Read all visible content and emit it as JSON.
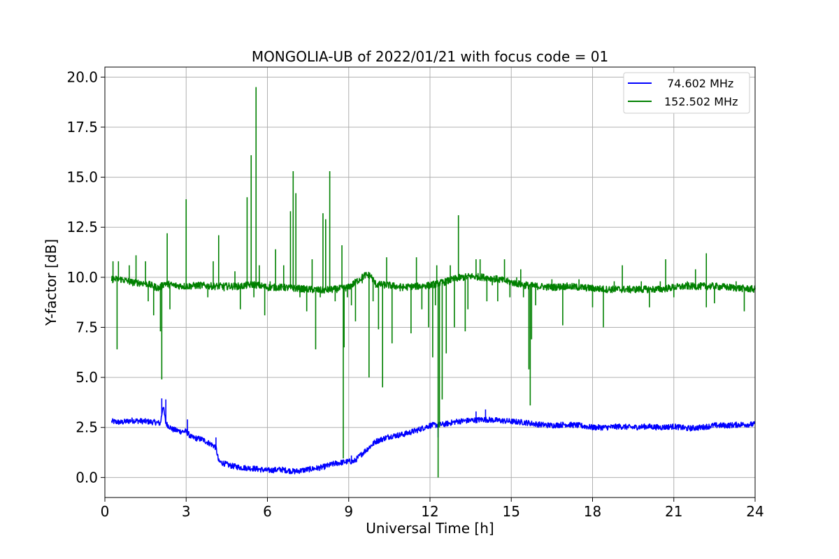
{
  "chart_data": {
    "type": "line",
    "title": "MONGOLIA-UB of 2022/01/21 with focus code = 01",
    "xlabel": "Universal Time [h]",
    "ylabel": "Y-factor [dB]",
    "xlim": [
      0,
      24
    ],
    "ylim": [
      -1.0,
      20.5
    ],
    "xticks": [
      0,
      3,
      6,
      9,
      12,
      15,
      18,
      21,
      24
    ],
    "xtick_labels": [
      "0",
      "3",
      "6",
      "9",
      "12",
      "15",
      "18",
      "21",
      "24"
    ],
    "yticks": [
      0.0,
      2.5,
      5.0,
      7.5,
      10.0,
      12.5,
      15.0,
      17.5,
      20.0
    ],
    "ytick_labels": [
      "0.0",
      "2.5",
      "5.0",
      "7.5",
      "10.0",
      "12.5",
      "15.0",
      "17.5",
      "20.0"
    ],
    "grid": true,
    "legend_position": "top-right",
    "series": [
      {
        "name": "74.602 MHz",
        "color": "#0000ff",
        "baseline": [
          [
            0.25,
            2.8
          ],
          [
            0.6,
            2.75
          ],
          [
            1.0,
            2.85
          ],
          [
            1.5,
            2.8
          ],
          [
            1.9,
            2.75
          ],
          [
            2.05,
            2.7
          ],
          [
            2.15,
            3.6
          ],
          [
            2.25,
            2.7
          ],
          [
            2.5,
            2.4
          ],
          [
            2.8,
            2.3
          ],
          [
            3.0,
            2.3
          ],
          [
            3.2,
            2.0
          ],
          [
            3.6,
            1.9
          ],
          [
            4.0,
            1.6
          ],
          [
            4.1,
            1.5
          ],
          [
            4.2,
            0.8
          ],
          [
            4.6,
            0.6
          ],
          [
            5.0,
            0.5
          ],
          [
            5.5,
            0.45
          ],
          [
            6.0,
            0.35
          ],
          [
            6.5,
            0.4
          ],
          [
            7.0,
            0.3
          ],
          [
            7.5,
            0.4
          ],
          [
            8.0,
            0.5
          ],
          [
            8.5,
            0.7
          ],
          [
            9.0,
            0.8
          ],
          [
            9.2,
            0.8
          ],
          [
            9.5,
            1.2
          ],
          [
            10.0,
            1.8
          ],
          [
            10.5,
            2.05
          ],
          [
            11.0,
            2.15
          ],
          [
            11.5,
            2.35
          ],
          [
            12.0,
            2.6
          ],
          [
            12.5,
            2.65
          ],
          [
            13.0,
            2.8
          ],
          [
            13.5,
            2.85
          ],
          [
            14.0,
            2.9
          ],
          [
            14.5,
            2.85
          ],
          [
            15.0,
            2.8
          ],
          [
            15.5,
            2.75
          ],
          [
            16.0,
            2.65
          ],
          [
            16.5,
            2.6
          ],
          [
            17.0,
            2.65
          ],
          [
            17.5,
            2.6
          ],
          [
            18.0,
            2.5
          ],
          [
            18.5,
            2.5
          ],
          [
            19.0,
            2.55
          ],
          [
            19.5,
            2.5
          ],
          [
            20.0,
            2.55
          ],
          [
            20.5,
            2.5
          ],
          [
            21.0,
            2.55
          ],
          [
            21.5,
            2.45
          ],
          [
            22.0,
            2.5
          ],
          [
            22.5,
            2.6
          ],
          [
            23.0,
            2.6
          ],
          [
            23.5,
            2.65
          ],
          [
            24.0,
            2.65
          ]
        ],
        "spikes": [
          [
            2.1,
            3.95
          ],
          [
            2.25,
            3.9
          ],
          [
            3.05,
            2.9
          ],
          [
            4.1,
            2.0
          ],
          [
            9.1,
            1.1
          ],
          [
            14.05,
            3.4
          ],
          [
            13.7,
            3.3
          ],
          [
            12.3,
            2.0
          ]
        ]
      },
      {
        "name": "152.502 MHz",
        "color": "#008000",
        "baseline": [
          [
            0.25,
            9.9
          ],
          [
            0.6,
            9.9
          ],
          [
            1.0,
            9.75
          ],
          [
            1.5,
            9.7
          ],
          [
            1.8,
            9.55
          ],
          [
            2.0,
            9.45
          ],
          [
            2.2,
            9.7
          ],
          [
            2.5,
            9.6
          ],
          [
            3.0,
            9.55
          ],
          [
            3.5,
            9.6
          ],
          [
            4.0,
            9.55
          ],
          [
            4.5,
            9.55
          ],
          [
            5.0,
            9.55
          ],
          [
            5.5,
            9.65
          ],
          [
            6.0,
            9.5
          ],
          [
            6.5,
            9.5
          ],
          [
            7.0,
            9.45
          ],
          [
            7.5,
            9.4
          ],
          [
            8.0,
            9.35
          ],
          [
            8.5,
            9.4
          ],
          [
            9.0,
            9.5
          ],
          [
            9.3,
            9.8
          ],
          [
            9.6,
            10.1
          ],
          [
            9.8,
            10.1
          ],
          [
            10.0,
            9.65
          ],
          [
            10.5,
            9.6
          ],
          [
            11.0,
            9.5
          ],
          [
            11.5,
            9.55
          ],
          [
            12.0,
            9.6
          ],
          [
            12.5,
            9.75
          ],
          [
            13.0,
            9.95
          ],
          [
            13.5,
            10.05
          ],
          [
            14.0,
            10.0
          ],
          [
            14.5,
            9.9
          ],
          [
            15.0,
            9.75
          ],
          [
            15.5,
            9.6
          ],
          [
            16.0,
            9.55
          ],
          [
            16.5,
            9.5
          ],
          [
            17.0,
            9.55
          ],
          [
            17.5,
            9.5
          ],
          [
            18.0,
            9.45
          ],
          [
            18.5,
            9.4
          ],
          [
            19.0,
            9.4
          ],
          [
            19.5,
            9.4
          ],
          [
            20.0,
            9.4
          ],
          [
            20.5,
            9.4
          ],
          [
            21.0,
            9.5
          ],
          [
            21.5,
            9.55
          ],
          [
            22.0,
            9.55
          ],
          [
            22.5,
            9.55
          ],
          [
            23.0,
            9.5
          ],
          [
            23.5,
            9.45
          ],
          [
            24.0,
            9.4
          ]
        ],
        "spikes": [
          [
            0.3,
            10.8
          ],
          [
            0.45,
            6.4
          ],
          [
            0.5,
            10.8
          ],
          [
            0.9,
            10.6
          ],
          [
            1.15,
            11.1
          ],
          [
            1.5,
            10.8
          ],
          [
            1.6,
            8.8
          ],
          [
            1.8,
            8.1
          ],
          [
            2.05,
            7.3
          ],
          [
            2.1,
            4.9
          ],
          [
            2.3,
            12.2
          ],
          [
            2.4,
            8.4
          ],
          [
            3.0,
            13.9
          ],
          [
            3.8,
            9.0
          ],
          [
            4.0,
            10.8
          ],
          [
            4.2,
            12.1
          ],
          [
            4.4,
            9.3
          ],
          [
            4.8,
            10.3
          ],
          [
            5.0,
            8.4
          ],
          [
            5.25,
            14.0
          ],
          [
            5.4,
            16.1
          ],
          [
            5.5,
            9.0
          ],
          [
            5.58,
            19.5
          ],
          [
            5.7,
            10.6
          ],
          [
            5.9,
            8.1
          ],
          [
            6.1,
            9.8
          ],
          [
            6.3,
            11.4
          ],
          [
            6.5,
            9.6
          ],
          [
            6.6,
            10.6
          ],
          [
            6.7,
            9.5
          ],
          [
            6.85,
            13.3
          ],
          [
            6.95,
            15.3
          ],
          [
            7.05,
            14.2
          ],
          [
            7.2,
            9.0
          ],
          [
            7.45,
            8.3
          ],
          [
            7.65,
            10.9
          ],
          [
            7.78,
            6.4
          ],
          [
            7.95,
            9.0
          ],
          [
            8.05,
            13.2
          ],
          [
            8.15,
            12.9
          ],
          [
            8.3,
            15.3
          ],
          [
            8.5,
            8.8
          ],
          [
            8.75,
            11.6
          ],
          [
            8.8,
            0.95
          ],
          [
            8.83,
            6.5
          ],
          [
            8.95,
            9.0
          ],
          [
            9.1,
            8.6
          ],
          [
            9.25,
            7.8
          ],
          [
            9.5,
            9.7
          ],
          [
            9.75,
            5.0
          ],
          [
            9.9,
            8.8
          ],
          [
            10.1,
            7.4
          ],
          [
            10.25,
            4.5
          ],
          [
            10.4,
            11.0
          ],
          [
            10.6,
            6.7
          ],
          [
            10.9,
            9.3
          ],
          [
            11.3,
            7.2
          ],
          [
            11.5,
            11.0
          ],
          [
            11.7,
            8.4
          ],
          [
            11.95,
            7.5
          ],
          [
            12.1,
            6.0
          ],
          [
            12.2,
            8.6
          ],
          [
            12.25,
            10.6
          ],
          [
            12.3,
            0.0
          ],
          [
            12.35,
            2.5
          ],
          [
            12.45,
            3.9
          ],
          [
            12.6,
            6.2
          ],
          [
            12.75,
            10.6
          ],
          [
            12.9,
            7.5
          ],
          [
            13.05,
            13.1
          ],
          [
            13.3,
            7.3
          ],
          [
            13.4,
            8.4
          ],
          [
            13.7,
            10.9
          ],
          [
            13.85,
            10.9
          ],
          [
            14.1,
            8.8
          ],
          [
            14.3,
            9.6
          ],
          [
            14.5,
            8.8
          ],
          [
            14.75,
            10.9
          ],
          [
            14.95,
            9.0
          ],
          [
            15.2,
            10.0
          ],
          [
            15.35,
            10.4
          ],
          [
            15.45,
            9.0
          ],
          [
            15.55,
            9.8
          ],
          [
            15.65,
            5.4
          ],
          [
            15.7,
            3.6
          ],
          [
            15.75,
            6.9
          ],
          [
            15.9,
            8.6
          ],
          [
            16.5,
            9.9
          ],
          [
            16.9,
            7.6
          ],
          [
            17.5,
            9.9
          ],
          [
            18.0,
            8.5
          ],
          [
            18.4,
            7.5
          ],
          [
            18.8,
            9.8
          ],
          [
            19.1,
            10.6
          ],
          [
            19.4,
            9.2
          ],
          [
            19.8,
            9.8
          ],
          [
            20.1,
            8.5
          ],
          [
            20.5,
            9.8
          ],
          [
            20.7,
            10.9
          ],
          [
            21.0,
            9.0
          ],
          [
            21.5,
            9.8
          ],
          [
            21.8,
            10.4
          ],
          [
            22.2,
            11.2
          ],
          [
            22.2,
            8.5
          ],
          [
            22.5,
            8.7
          ],
          [
            23.3,
            9.8
          ],
          [
            23.6,
            8.3
          ]
        ]
      }
    ]
  }
}
